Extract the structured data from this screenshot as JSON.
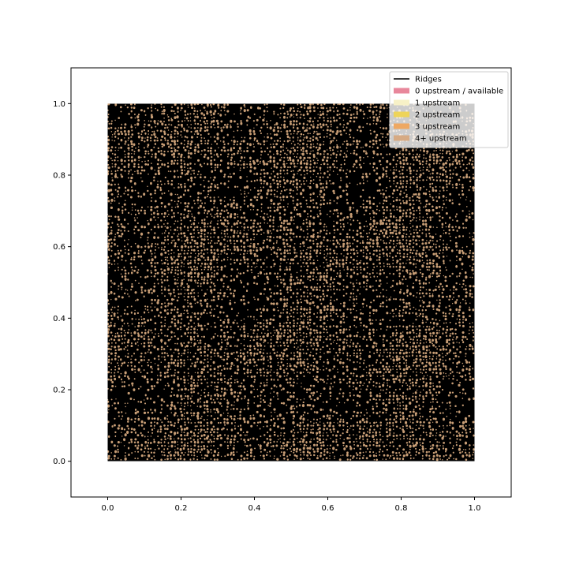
{
  "chart_data": {
    "type": "voronoi-mesh",
    "title": "",
    "xlabel": "",
    "ylabel": "",
    "xlim": [
      -0.1,
      1.1
    ],
    "ylim": [
      -0.1,
      1.1
    ],
    "domain": {
      "x": [
        0.0,
        1.0
      ],
      "y": [
        0.0,
        1.0
      ]
    },
    "x_ticks": [
      "0.0",
      "0.2",
      "0.4",
      "0.6",
      "0.8",
      "1.0"
    ],
    "y_ticks": [
      "0.0",
      "0.2",
      "0.4",
      "0.6",
      "0.8",
      "1.0"
    ],
    "grid": false,
    "legend_position": "upper-right",
    "legend": [
      {
        "label": "Ridges",
        "kind": "line",
        "color": "#000000"
      },
      {
        "label": "0 upstream / available",
        "kind": "patch",
        "color": "#e8879b"
      },
      {
        "label": "1 upstream",
        "kind": "patch",
        "color": "#f7f1c7"
      },
      {
        "label": "2 upstream",
        "kind": "patch",
        "color": "#eed45a"
      },
      {
        "label": "3 upstream",
        "kind": "patch",
        "color": "#eea862"
      },
      {
        "label": "4+ upstream",
        "kind": "patch",
        "color": "#d6aa83"
      }
    ],
    "cell_fill_color": "#eab88a",
    "ridge_color": "#000000"
  }
}
